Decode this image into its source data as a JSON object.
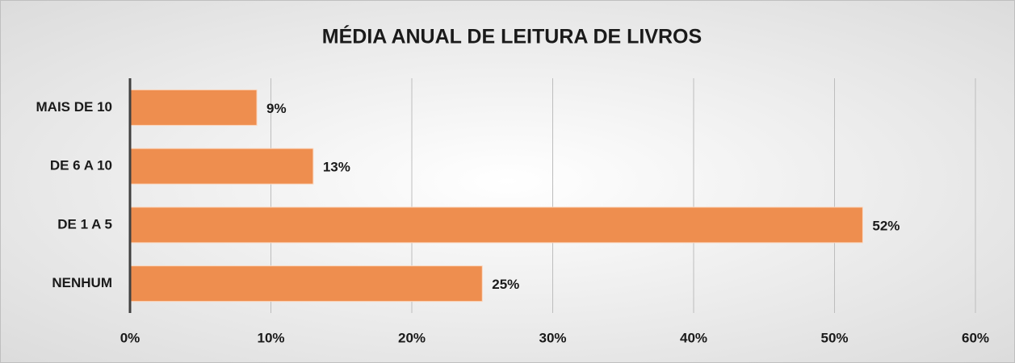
{
  "chart_data": {
    "type": "bar",
    "orientation": "horizontal",
    "title": "MÉDIA ANUAL DE LEITURA DE LIVROS",
    "categories": [
      "MAIS DE 10",
      "DE 6 A 10",
      "DE 1 A 5",
      "NENHUM"
    ],
    "values": [
      9,
      13,
      52,
      25
    ],
    "value_labels": [
      "9%",
      "13%",
      "52%",
      "25%"
    ],
    "color": "#ee8e4f",
    "xlim": [
      0,
      60
    ],
    "xticks": [
      {
        "value": 0,
        "label": "0%"
      },
      {
        "value": 10,
        "label": "10%"
      },
      {
        "value": 20,
        "label": "20%"
      },
      {
        "value": 30,
        "label": "30%"
      },
      {
        "value": 40,
        "label": "40%"
      },
      {
        "value": 50,
        "label": "50%"
      },
      {
        "value": 60,
        "label": "60%"
      }
    ],
    "grid": true
  }
}
